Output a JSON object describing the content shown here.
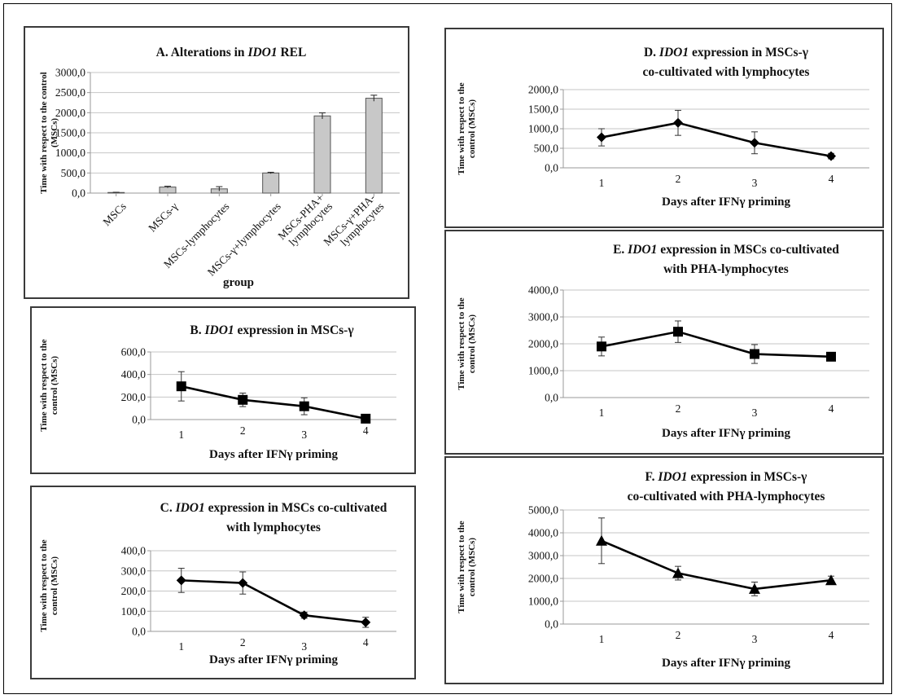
{
  "chart_data": [
    {
      "id": "A",
      "type": "bar",
      "title_prefix": "A. Alterations in ",
      "title_gene": "IDO1",
      "title_suffix": " REL",
      "ylabel": [
        "Time with respect to the control",
        "(MSCs)"
      ],
      "xlabel": "group",
      "ylim": [
        0,
        3000
      ],
      "yticks": [
        "0,0",
        "500,0",
        "1000,0",
        "1500,0",
        "2000,0",
        "2500,0",
        "3000,0"
      ],
      "categories": [
        [
          "MSCs"
        ],
        [
          "MSCs-γ"
        ],
        [
          "MSCs-lymphocytes"
        ],
        [
          "MSCs-γ+lymphocytes"
        ],
        [
          "MSCs-PHA+",
          "lymphocytes"
        ],
        [
          "MSCs-γ+PHA-",
          "lymphocytes"
        ]
      ],
      "values": [
        15,
        150,
        105,
        500,
        1920,
        2360
      ],
      "errors": [
        5,
        20,
        55,
        18,
        75,
        75
      ],
      "color": "#c8c8c8",
      "grid": true
    },
    {
      "id": "B",
      "type": "line",
      "title_lines": [
        [
          {
            "t": "B. "
          },
          {
            "t": "IDO1",
            "i": true
          },
          {
            "t": " expression in MSCs-γ"
          }
        ]
      ],
      "ylabel": [
        "Time with respect to the",
        "control (MSCs)"
      ],
      "xlabel": "Days after IFNγ priming",
      "x": [
        1,
        2,
        3,
        4
      ],
      "values": [
        295,
        175,
        118,
        8
      ],
      "errors": [
        130,
        60,
        75,
        10
      ],
      "ylim": [
        0,
        600
      ],
      "yticks": [
        "0,0",
        "200,0",
        "400,0",
        "600,0"
      ],
      "marker": "square",
      "grid": true
    },
    {
      "id": "C",
      "type": "line",
      "title_lines": [
        [
          {
            "t": "C. "
          },
          {
            "t": "IDO1",
            "i": true
          },
          {
            "t": " expression in MSCs co-cultivated"
          }
        ],
        [
          {
            "t": "with lymphocytes"
          }
        ]
      ],
      "ylabel": [
        "Time with respect to the",
        "control (MSCs)"
      ],
      "xlabel": "Days after IFNγ priming",
      "x": [
        1,
        2,
        3,
        4
      ],
      "values": [
        253,
        240,
        80,
        45
      ],
      "errors": [
        60,
        55,
        15,
        25
      ],
      "ylim": [
        0,
        400
      ],
      "yticks": [
        "0,0",
        "100,0",
        "200,0",
        "300,0",
        "400,0"
      ],
      "marker": "diamond",
      "grid": true
    },
    {
      "id": "D",
      "type": "line",
      "title_lines": [
        [
          {
            "t": "D. "
          },
          {
            "t": "IDO1",
            "i": true
          },
          {
            "t": " expression in MSCs-γ"
          }
        ],
        [
          {
            "t": "co-cultivated with lymphocytes"
          }
        ]
      ],
      "ylabel": [
        "Time with respect to the",
        "control (MSCs)"
      ],
      "xlabel": "Days after IFNγ priming",
      "x": [
        1,
        2,
        3,
        4
      ],
      "values": [
        780,
        1150,
        640,
        300
      ],
      "errors": [
        220,
        320,
        280,
        70
      ],
      "ylim": [
        0,
        2000
      ],
      "yticks": [
        "0,0",
        "500,0",
        "1000,0",
        "1500,0",
        "2000,0"
      ],
      "marker": "diamond",
      "grid": true
    },
    {
      "id": "E",
      "type": "line",
      "title_lines": [
        [
          {
            "t": "E. "
          },
          {
            "t": "IDO1",
            "i": true
          },
          {
            "t": " expression in MSCs co-cultivated"
          }
        ],
        [
          {
            "t": "with PHA-lymphocytes"
          }
        ]
      ],
      "ylabel": [
        "Time with respect to the",
        "control (MSCs)"
      ],
      "xlabel": "Days after IFNγ priming",
      "x": [
        1,
        2,
        3,
        4
      ],
      "values": [
        1900,
        2450,
        1620,
        1520
      ],
      "errors": [
        350,
        400,
        350,
        80
      ],
      "ylim": [
        0,
        4000
      ],
      "yticks": [
        "0,0",
        "1000,0",
        "2000,0",
        "3000,0",
        "4000,0"
      ],
      "marker": "square",
      "grid": true
    },
    {
      "id": "F",
      "type": "line",
      "title_lines": [
        [
          {
            "t": "F. "
          },
          {
            "t": "IDO1",
            "i": true
          },
          {
            "t": " expression in MSCs-γ"
          }
        ],
        [
          {
            "t": "co-cultivated with PHA-lymphocytes"
          }
        ]
      ],
      "ylabel": [
        "Time with respect to the",
        "control (MSCs)"
      ],
      "xlabel": "Days after IFNγ priming",
      "x": [
        1,
        2,
        3,
        4
      ],
      "values": [
        3650,
        2230,
        1540,
        1920
      ],
      "errors": [
        1000,
        300,
        300,
        180
      ],
      "ylim": [
        0,
        5000
      ],
      "yticks": [
        "0,0",
        "1000,0",
        "2000,0",
        "3000,0",
        "4000,0",
        "5000,0"
      ],
      "marker": "triangle",
      "grid": true
    }
  ]
}
